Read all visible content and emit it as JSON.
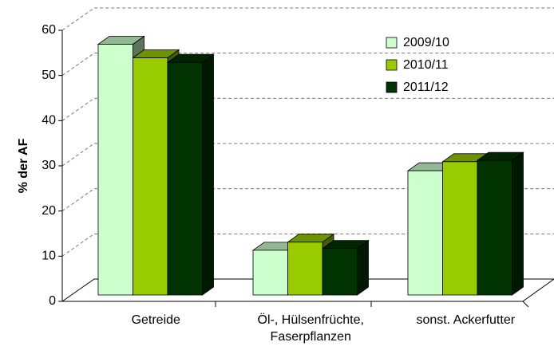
{
  "chart_data": {
    "type": "bar3d",
    "y_label": "% der AF",
    "categories": [
      "Getreide",
      "Öl-, Hülsenfrüchte, Faserpflanzen",
      "sonst. Ackerfutter"
    ],
    "series": [
      {
        "name": "2009/10",
        "color": "#ccffcc",
        "values": [
          55.5,
          9.9,
          27.5
        ]
      },
      {
        "name": "2010/11",
        "color": "#99cc00",
        "values": [
          52.5,
          11.7,
          29.5
        ]
      },
      {
        "name": "2011/12",
        "color": "#003300",
        "values": [
          51.5,
          10.3,
          29.8
        ]
      }
    ],
    "ylim": [
      0,
      60
    ],
    "yticks": [
      0,
      10,
      20,
      30,
      40,
      50,
      60
    ],
    "grid": true,
    "legend": "top-right"
  }
}
